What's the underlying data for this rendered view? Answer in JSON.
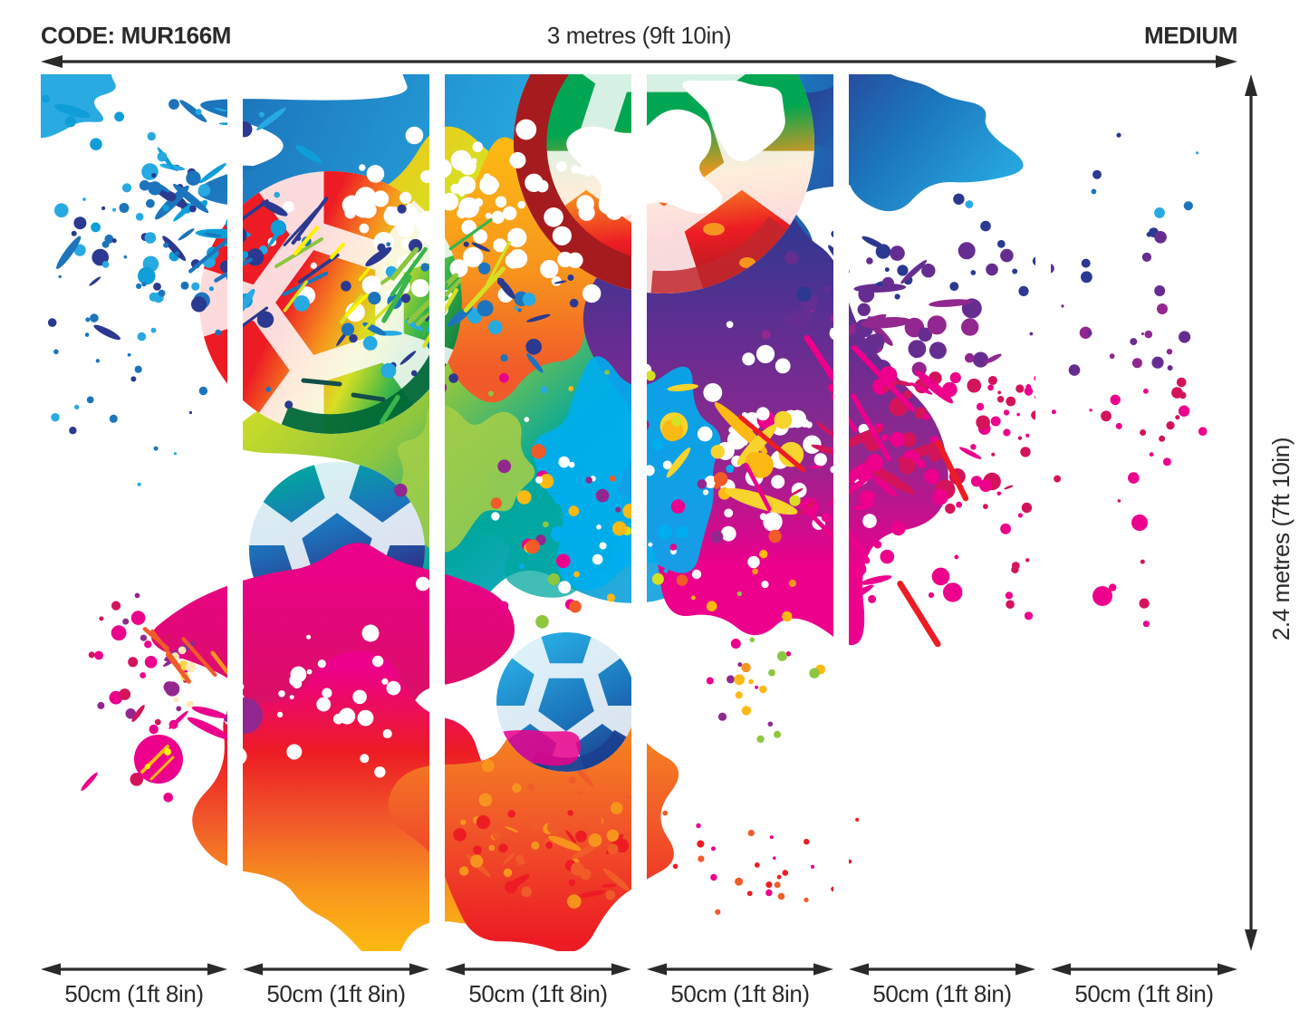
{
  "product": {
    "code_label": "CODE: MUR166M",
    "size_label": "MEDIUM",
    "width_label": "3 metres (9ft 10in)",
    "height_label": "2.4 metres (7ft 10in)"
  },
  "panels": {
    "count": 6,
    "labels": [
      "50cm (1ft 8in)",
      "50cm (1ft 8in)",
      "50cm (1ft 8in)",
      "50cm (1ft 8in)",
      "50cm (1ft 8in)",
      "50cm (1ft 8in)"
    ]
  },
  "artwork": {
    "description": "Colourful paint splash mural with footballs",
    "palette": {
      "ink": "#2b2a29",
      "blue": "#1c75bc",
      "navy": "#2b3990",
      "deepnavy": "#1b3f8f",
      "cyan": "#27aae1",
      "sky": "#00aeef",
      "teal": "#00a79d",
      "green": "#00a651",
      "grass": "#39b54a",
      "lime": "#8dc63f",
      "chartreuse": "#d7df23",
      "yellow": "#fff200",
      "gold": "#fdb913",
      "orange": "#f7941d",
      "orangered": "#f15a29",
      "red": "#ed1c24",
      "darkred": "#a61b1e",
      "crimson": "#d4145a",
      "magenta": "#ec008c",
      "purple": "#92278f",
      "violet": "#662d91",
      "cream": "#ffe9b8",
      "white": "#ffffff",
      "darkgreen": "#006838"
    }
  }
}
